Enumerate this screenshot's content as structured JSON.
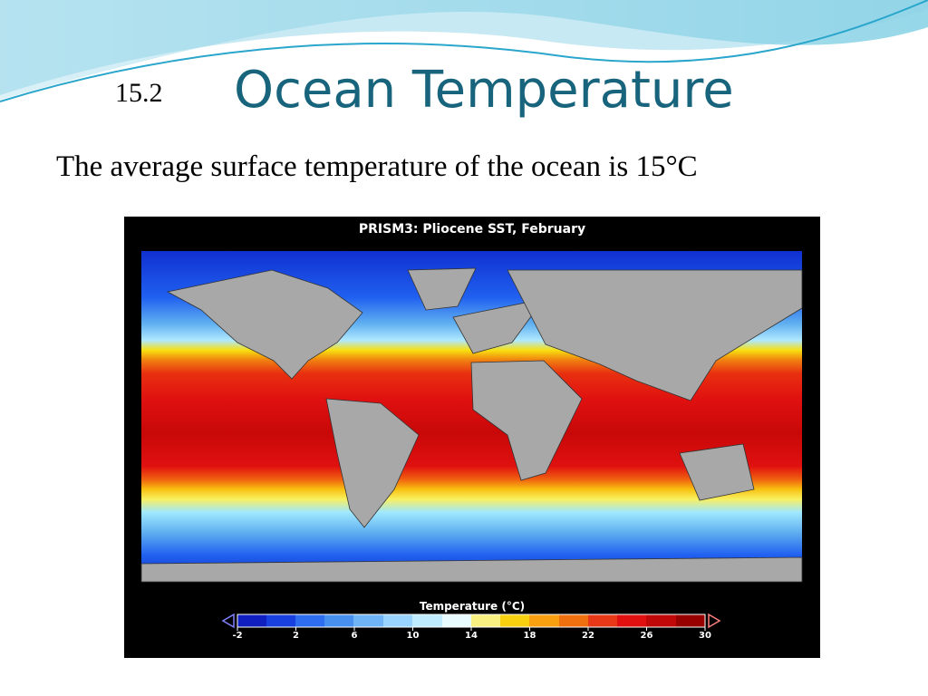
{
  "slide": {
    "number": "15.2",
    "title": "Ocean Temperature",
    "body": "The average surface temperature of the ocean is 15°C"
  },
  "figure": {
    "title": "PRISM3: Pliocene SST, February",
    "colorbar": {
      "label": "Temperature (°C)",
      "ticks": [
        "-2",
        "2",
        "6",
        "10",
        "14",
        "18",
        "22",
        "26",
        "30"
      ]
    }
  }
}
